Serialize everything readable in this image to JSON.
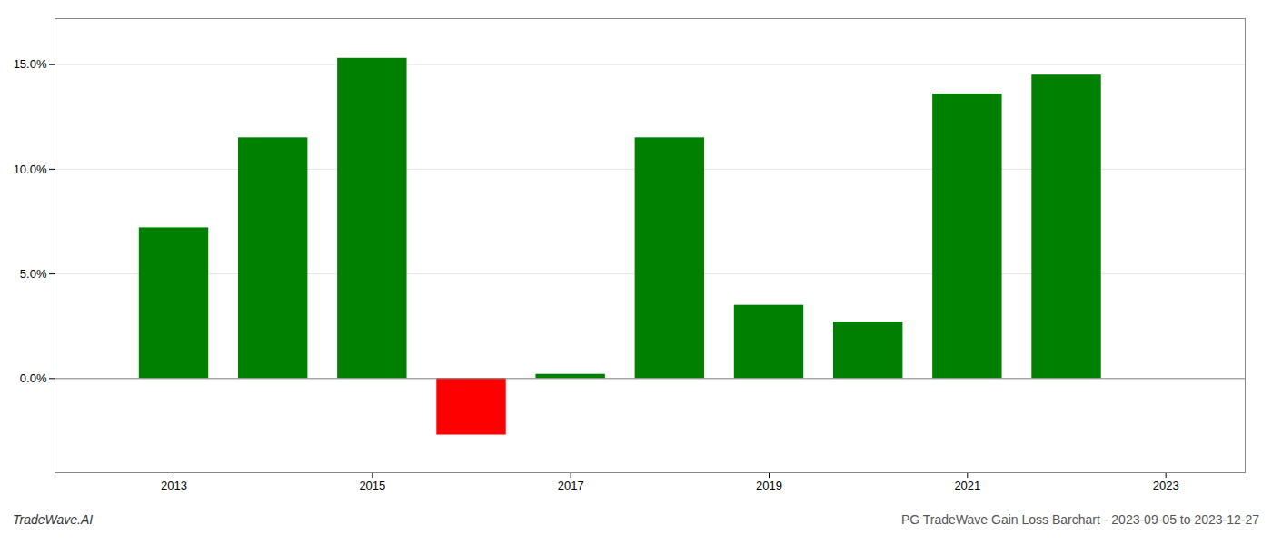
{
  "chart_data": {
    "type": "bar",
    "title": "PG TradeWave Gain Loss Barchart - 2023-09-05 to 2023-12-27",
    "annotations": [
      "TradeWave.AI"
    ],
    "x": [
      2013,
      2014,
      2015,
      2016,
      2017,
      2018,
      2019,
      2020,
      2021,
      2022
    ],
    "values": [
      0.072,
      0.115,
      0.153,
      -0.027,
      0.002,
      0.115,
      0.035,
      0.027,
      0.136,
      0.145
    ],
    "colors": [
      "#008000",
      "#008000",
      "#008000",
      "#ff0000",
      "#008000",
      "#008000",
      "#008000",
      "#008000",
      "#008000",
      "#008000"
    ],
    "xlim": [
      2011.8,
      2023.8
    ],
    "xticks": [
      2013,
      2015,
      2017,
      2019,
      2021,
      2023
    ],
    "ylim": [
      -0.045,
      0.172
    ],
    "yticks": [
      {
        "value": 0.0,
        "label": "0.0%"
      },
      {
        "value": 0.05,
        "label": "5.0%"
      },
      {
        "value": 0.1,
        "label": "10.0%"
      },
      {
        "value": 0.15,
        "label": "15.0%"
      }
    ],
    "grid": true
  }
}
